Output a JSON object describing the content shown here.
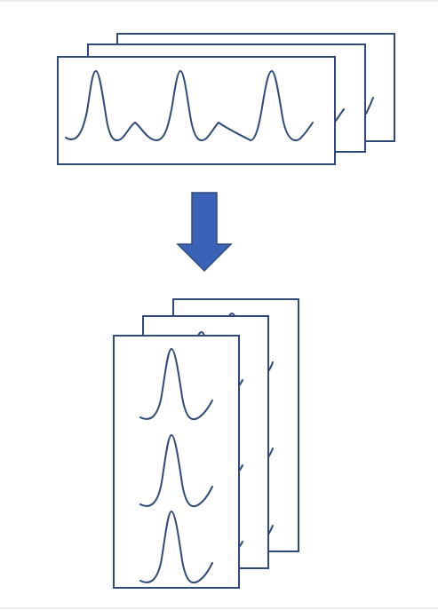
{
  "diagram": {
    "description_free": true,
    "colors": {
      "background": "#ffffff",
      "frame_stroke": "#2f4a78",
      "frame_fill": "#ffffff",
      "waveform": "#2f4a78",
      "arrow_fill": "#3a63b8",
      "arrow_stroke": "#2f4a78",
      "page_border": "#d9d9d9"
    },
    "top_stack": {
      "panel_count": 3,
      "peaks_per_panel": 3
    },
    "arrow": {
      "direction": "down",
      "icon": "down-arrow-icon"
    },
    "bottom_stack": {
      "panel_count": 3,
      "peaks_per_panel": 3
    }
  }
}
